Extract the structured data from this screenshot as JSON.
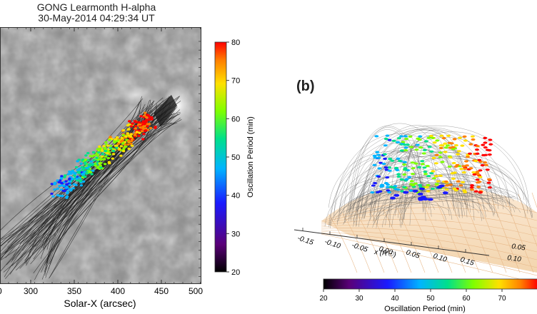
{
  "panel_a": {
    "title_line1": "GONG Learmonth H-alpha",
    "title_line2": "30-May-2014 04:29:34 UT",
    "x_axis_label": "Solar-X (arcsec)",
    "x_ticks": [
      "300",
      "350",
      "400",
      "450",
      "500"
    ],
    "x_tick_partial_left": "0",
    "colorbar_label": "Oscillation Period (min)",
    "colorbar_ticks": [
      "80",
      "70",
      "60",
      "50",
      "40",
      "30",
      "20"
    ]
  },
  "panel_b": {
    "label": "(b)",
    "x_axis_label": "x (R☉)",
    "x_ticks": [
      "-0.15",
      "-0.10",
      "-0.05",
      "0.00",
      "0.05",
      "0.10",
      "0.15"
    ],
    "y_ticks_partial": [
      "0.05",
      "0.10"
    ],
    "colorbar_label": "Oscillation Period (min)",
    "colorbar_ticks": [
      "20",
      "30",
      "40",
      "50",
      "60",
      "70"
    ]
  },
  "colors": {
    "colormap": [
      "#000000",
      "#5a0078",
      "#1a1aff",
      "#00b4ff",
      "#00e08a",
      "#7fff00",
      "#ffe000",
      "#ff8000",
      "#ff0000"
    ],
    "loops": "#1a1a1a",
    "surface": "#f7e2c6"
  }
}
